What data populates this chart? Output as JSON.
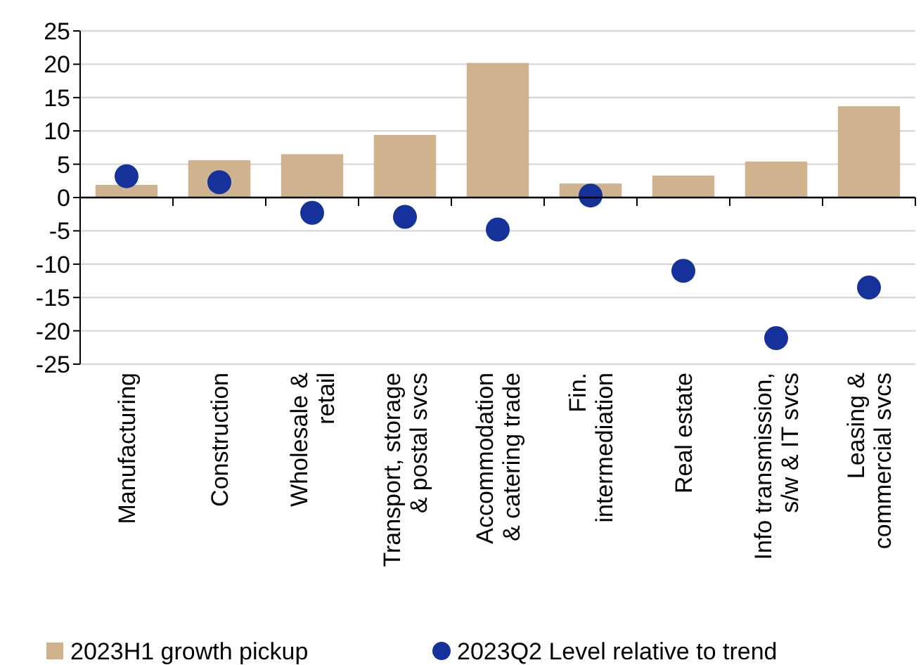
{
  "chart_data": {
    "type": "bar",
    "categories": [
      "Manufacturing",
      "Construction",
      "Wholesale &\nretail",
      "Transport, storage\n& postal svcs",
      "Accommodation\n& catering trade",
      "Fin.\nintermediation",
      "Real estate",
      "Info transmission,\ns/w & IT svcs",
      "Leasing &\ncommercial svcs"
    ],
    "series": [
      {
        "name": "2023H1 growth pickup",
        "color": "#cfb38f",
        "values": [
          1.9,
          5.6,
          6.5,
          9.4,
          20.2,
          2.1,
          3.3,
          5.4,
          13.7
        ]
      },
      {
        "name": "2023Q2 Level relative to trend",
        "type": "scatter",
        "color": "#14329a",
        "marker": "circle",
        "values": [
          3.2,
          2.3,
          -2.3,
          -2.9,
          -4.8,
          0.3,
          -11.0,
          -21.1,
          -13.5
        ]
      }
    ],
    "ylim": [
      -25,
      25
    ],
    "yticks": [
      -25,
      -20,
      -15,
      -10,
      -5,
      0,
      5,
      10,
      15,
      20,
      25
    ],
    "grid": "y",
    "legend": "bottom"
  }
}
